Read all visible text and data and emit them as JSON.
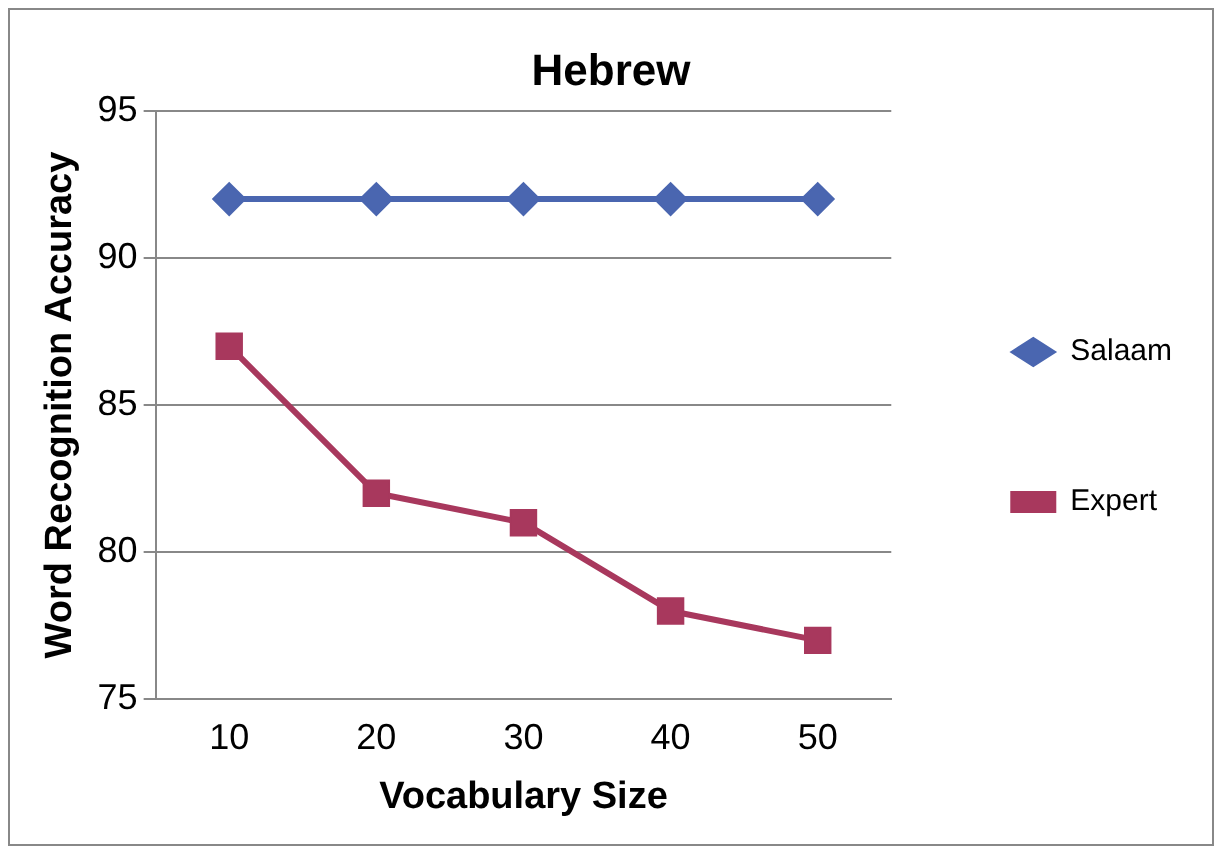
{
  "chart_data": {
    "type": "line",
    "title": "Hebrew",
    "xlabel": "Vocabulary Size",
    "ylabel": "Word Recognition Accuracy",
    "categories": [
      "10",
      "20",
      "30",
      "40",
      "50"
    ],
    "series": [
      {
        "name": "Salaam",
        "color": "#4a66b0",
        "values": [
          92,
          92,
          92,
          92,
          92
        ],
        "marker": "diamond"
      },
      {
        "name": "Expert",
        "color": "#a8385d",
        "values": [
          87,
          82,
          81,
          78,
          77
        ],
        "marker": "square"
      }
    ],
    "ylim": [
      75,
      95
    ],
    "yticks": [
      75,
      80,
      85,
      90,
      95
    ],
    "grid": "y",
    "legend": "right",
    "line_style": "solid"
  }
}
